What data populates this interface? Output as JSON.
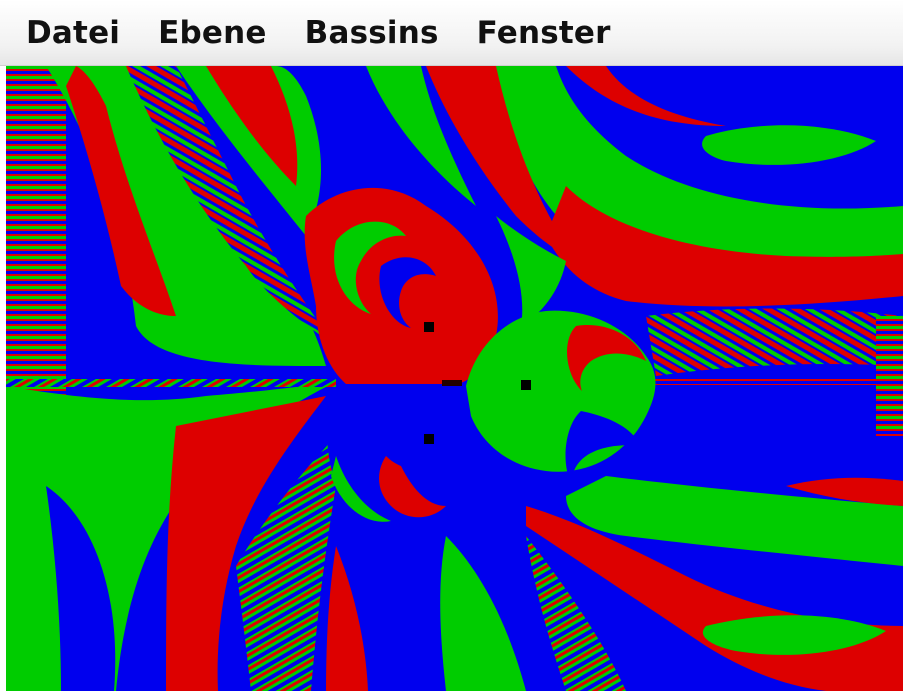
{
  "menubar": {
    "items": [
      {
        "label": "Datei"
      },
      {
        "label": "Ebene"
      },
      {
        "label": "Bassins"
      },
      {
        "label": "Fenster"
      }
    ]
  },
  "plot": {
    "description_colors": {
      "basin_1": "#dd0000",
      "basin_2": "#00cc00",
      "basin_3": "#0000ee",
      "root_marker": "#000000"
    },
    "root_count": 3
  }
}
